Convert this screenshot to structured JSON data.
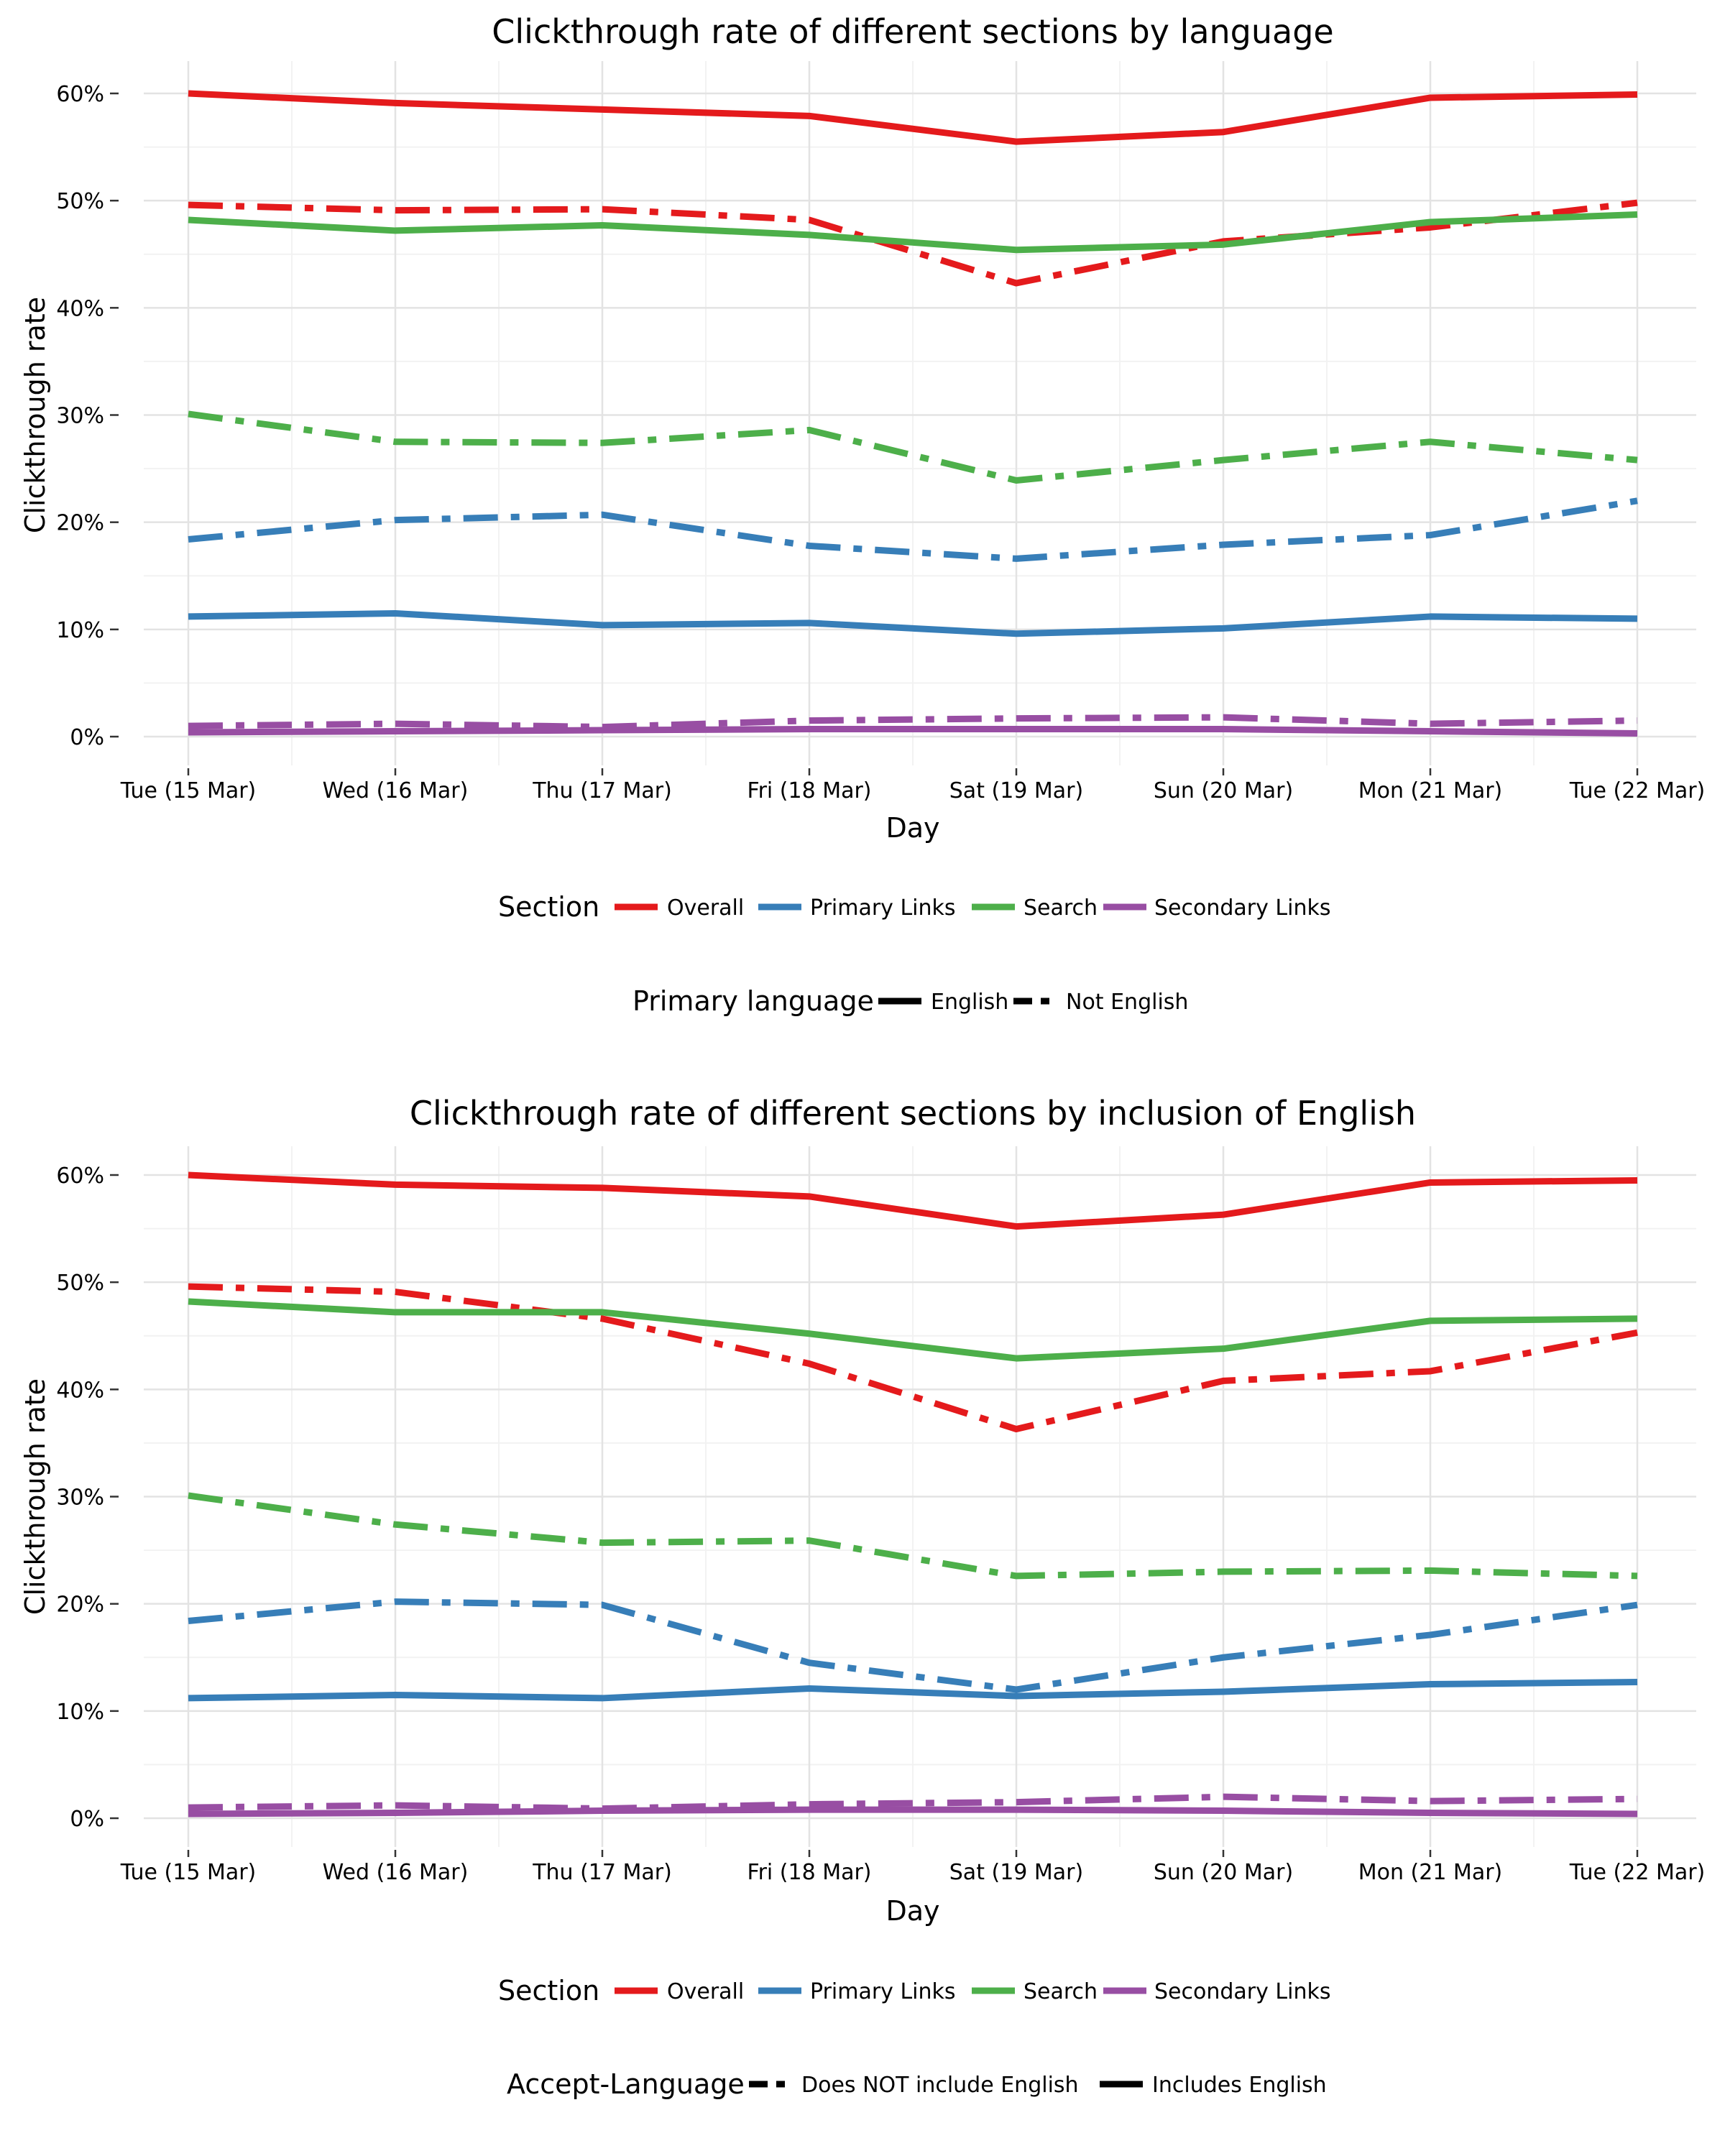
{
  "colors": {
    "Overall": "#E41A1C",
    "Primary Links": "#377EB8",
    "Search": "#4DAF4A",
    "Secondary Links": "#984EA3"
  },
  "chart_data": [
    {
      "type": "line",
      "title": "Clickthrough rate of different sections by language",
      "xlabel": "Day",
      "ylabel": "Clickthrough rate",
      "categories": [
        "Tue (15 Mar)",
        "Wed (16 Mar)",
        "Thu (17 Mar)",
        "Fri (18 Mar)",
        "Sat (19 Mar)",
        "Sun (20 Mar)",
        "Mon (21 Mar)",
        "Tue (22 Mar)"
      ],
      "ylim": [
        0,
        60
      ],
      "yticks": [
        0,
        10,
        20,
        30,
        40,
        50,
        60
      ],
      "ytick_labels": [
        "0%",
        "10%",
        "20%",
        "30%",
        "40%",
        "50%",
        "60%"
      ],
      "grid": true,
      "legend_section_title": "Section",
      "legend_section": [
        "Overall",
        "Primary Links",
        "Search",
        "Secondary Links"
      ],
      "legend_linetype_title": "Primary language",
      "legend_linetype": [
        {
          "label": "English",
          "dash": "solid"
        },
        {
          "label": "Not English",
          "dash": "dashed"
        }
      ],
      "series": [
        {
          "section": "Overall",
          "group": "English",
          "values": [
            60.0,
            59.1,
            58.5,
            57.9,
            55.5,
            56.4,
            59.6,
            59.9
          ]
        },
        {
          "section": "Overall",
          "group": "Not English",
          "values": [
            49.6,
            49.1,
            49.2,
            48.2,
            42.3,
            46.2,
            47.5,
            49.8
          ]
        },
        {
          "section": "Search",
          "group": "English",
          "values": [
            48.2,
            47.2,
            47.7,
            46.8,
            45.4,
            45.9,
            48.0,
            48.7
          ]
        },
        {
          "section": "Search",
          "group": "Not English",
          "values": [
            30.1,
            27.5,
            27.4,
            28.6,
            23.9,
            25.8,
            27.5,
            25.8
          ]
        },
        {
          "section": "Primary Links",
          "group": "English",
          "values": [
            11.2,
            11.5,
            10.4,
            10.6,
            9.6,
            10.1,
            11.2,
            11.0
          ]
        },
        {
          "section": "Primary Links",
          "group": "Not English",
          "values": [
            18.4,
            20.2,
            20.7,
            17.8,
            16.6,
            17.9,
            18.8,
            22.0
          ]
        },
        {
          "section": "Secondary Links",
          "group": "English",
          "values": [
            0.4,
            0.5,
            0.6,
            0.7,
            0.7,
            0.7,
            0.5,
            0.3
          ]
        },
        {
          "section": "Secondary Links",
          "group": "Not English",
          "values": [
            1.0,
            1.2,
            0.9,
            1.5,
            1.7,
            1.8,
            1.2,
            1.5
          ]
        }
      ]
    },
    {
      "type": "line",
      "title": "Clickthrough rate of different sections by inclusion of English",
      "xlabel": "Day",
      "ylabel": "Clickthrough rate",
      "categories": [
        "Tue (15 Mar)",
        "Wed (16 Mar)",
        "Thu (17 Mar)",
        "Fri (18 Mar)",
        "Sat (19 Mar)",
        "Sun (20 Mar)",
        "Mon (21 Mar)",
        "Tue (22 Mar)"
      ],
      "ylim": [
        0,
        60
      ],
      "yticks": [
        0,
        10,
        20,
        30,
        40,
        50,
        60
      ],
      "ytick_labels": [
        "0%",
        "10%",
        "20%",
        "30%",
        "40%",
        "50%",
        "60%"
      ],
      "grid": true,
      "legend_section_title": "Section",
      "legend_section": [
        "Overall",
        "Primary Links",
        "Search",
        "Secondary Links"
      ],
      "legend_linetype_title": "Accept-Language",
      "legend_linetype": [
        {
          "label": "Does NOT include English",
          "dash": "dashed"
        },
        {
          "label": "Includes English",
          "dash": "solid"
        }
      ],
      "series": [
        {
          "section": "Overall",
          "group": "Includes English",
          "values": [
            60.0,
            59.1,
            58.8,
            58.0,
            55.2,
            56.3,
            59.3,
            59.5
          ]
        },
        {
          "section": "Overall",
          "group": "Does NOT include English",
          "values": [
            49.6,
            49.1,
            46.6,
            42.4,
            36.3,
            40.8,
            41.7,
            45.3
          ]
        },
        {
          "section": "Search",
          "group": "Includes English",
          "values": [
            48.2,
            47.2,
            47.2,
            45.2,
            42.9,
            43.8,
            46.4,
            46.6
          ]
        },
        {
          "section": "Search",
          "group": "Does NOT include English",
          "values": [
            30.1,
            27.4,
            25.7,
            25.9,
            22.6,
            23.0,
            23.1,
            22.6
          ]
        },
        {
          "section": "Primary Links",
          "group": "Includes English",
          "values": [
            11.2,
            11.5,
            11.2,
            12.1,
            11.4,
            11.8,
            12.5,
            12.7
          ]
        },
        {
          "section": "Primary Links",
          "group": "Does NOT include English",
          "values": [
            18.4,
            20.2,
            19.9,
            14.5,
            12.0,
            15.0,
            17.1,
            19.9
          ]
        },
        {
          "section": "Secondary Links",
          "group": "Includes English",
          "values": [
            0.4,
            0.5,
            0.7,
            0.8,
            0.8,
            0.7,
            0.5,
            0.4
          ]
        },
        {
          "section": "Secondary Links",
          "group": "Does NOT include English",
          "values": [
            1.0,
            1.2,
            0.9,
            1.3,
            1.5,
            2.0,
            1.6,
            1.8
          ]
        }
      ]
    }
  ]
}
